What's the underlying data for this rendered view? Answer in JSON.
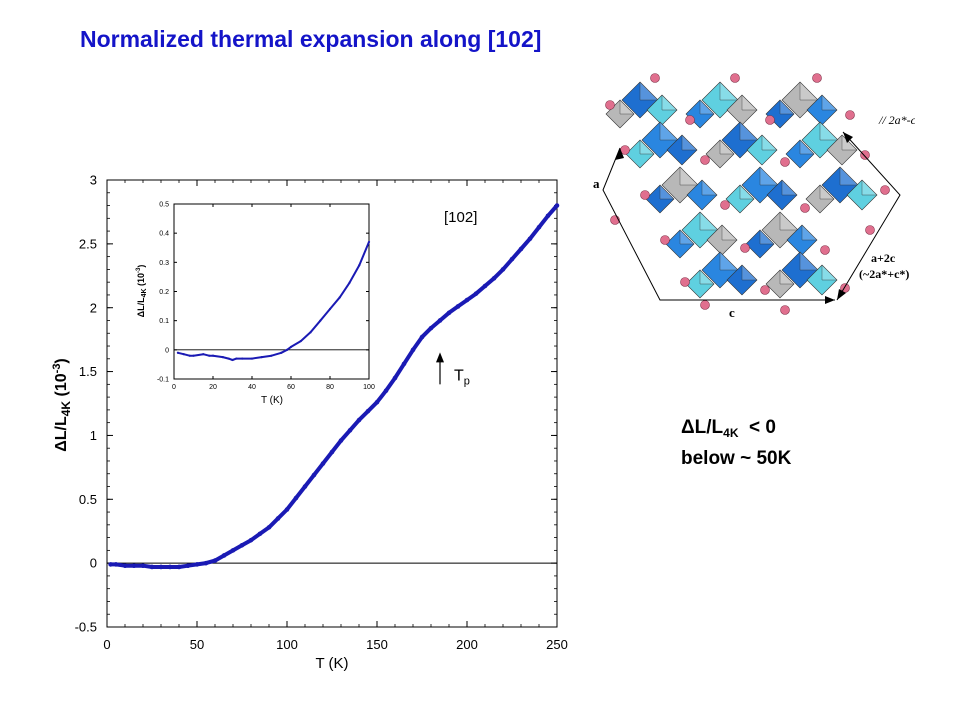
{
  "title": "Normalized thermal expansion along [102]",
  "chart_data": [
    {
      "type": "scatter",
      "xlabel": "T (K)",
      "ylabel_main": "ΔL/L",
      "ylabel_sub": "4K",
      "ylabel_unit_pre": " (10",
      "ylabel_unit_exp": "-3",
      "ylabel_unit_post": ")",
      "xlim": [
        0,
        250
      ],
      "ylim": [
        -0.5,
        3
      ],
      "xticks": [
        0,
        50,
        100,
        150,
        200,
        250
      ],
      "yticks": [
        -0.5,
        0,
        0.5,
        1,
        1.5,
        2,
        2.5,
        3
      ],
      "xtick_labels": [
        "0",
        "50",
        "100",
        "150",
        "200",
        "250"
      ],
      "ytick_labels": [
        "-0.5",
        "0",
        "0.5",
        "1",
        "1.5",
        "2",
        "2.5",
        "3"
      ],
      "zero_line": 0,
      "annotation_direction": "[102]",
      "arrow_label_main": "T",
      "arrow_label_sub": "p",
      "arrow_x": 185,
      "arrow_y_range": [
        1.4,
        1.65
      ],
      "series": [
        {
          "color": "#1a1ab4",
          "x": [
            2,
            5,
            10,
            15,
            20,
            25,
            30,
            35,
            40,
            45,
            50,
            55,
            60,
            65,
            70,
            75,
            80,
            85,
            90,
            95,
            100,
            105,
            110,
            115,
            120,
            125,
            130,
            135,
            140,
            145,
            150,
            155,
            160,
            165,
            170,
            175,
            180,
            185,
            190,
            195,
            200,
            205,
            210,
            215,
            220,
            225,
            230,
            235,
            240,
            245,
            250
          ],
          "y": [
            -0.01,
            -0.01,
            -0.02,
            -0.02,
            -0.02,
            -0.03,
            -0.03,
            -0.03,
            -0.03,
            -0.02,
            -0.01,
            0.0,
            0.02,
            0.06,
            0.1,
            0.14,
            0.18,
            0.23,
            0.28,
            0.35,
            0.42,
            0.51,
            0.6,
            0.69,
            0.78,
            0.87,
            0.96,
            1.04,
            1.12,
            1.19,
            1.26,
            1.35,
            1.45,
            1.56,
            1.67,
            1.77,
            1.84,
            1.9,
            1.96,
            2.01,
            2.06,
            2.11,
            2.17,
            2.23,
            2.3,
            2.38,
            2.46,
            2.54,
            2.63,
            2.72,
            2.8
          ]
        }
      ]
    },
    {
      "type": "scatter",
      "name": "inset",
      "xlabel": "T (K)",
      "ylabel_main": "ΔL/L",
      "ylabel_sub": "4K",
      "ylabel_unit_pre": " (10",
      "ylabel_unit_exp": "-3",
      "ylabel_unit_post": ")",
      "xlim": [
        0,
        100
      ],
      "ylim": [
        -0.1,
        0.5
      ],
      "xticks": [
        0,
        20,
        40,
        60,
        80,
        100
      ],
      "yticks": [
        -0.1,
        0,
        0.1,
        0.2,
        0.3,
        0.4,
        0.5
      ],
      "xtick_labels": [
        "0",
        "20",
        "40",
        "60",
        "80",
        "100"
      ],
      "ytick_labels": [
        "-0.1",
        "0",
        "0.1",
        "0.2",
        "0.3",
        "0.4",
        "0.5"
      ],
      "zero_line": 0,
      "series": [
        {
          "color": "#1a1ab4",
          "x": [
            2,
            5,
            8,
            10,
            15,
            18,
            20,
            25,
            28,
            30,
            32,
            35,
            40,
            45,
            50,
            55,
            58,
            60,
            65,
            70,
            75,
            80,
            85,
            90,
            95,
            100
          ],
          "y": [
            -0.01,
            -0.015,
            -0.02,
            -0.02,
            -0.015,
            -0.02,
            -0.02,
            -0.025,
            -0.03,
            -0.035,
            -0.03,
            -0.03,
            -0.03,
            -0.025,
            -0.02,
            -0.01,
            0.0,
            0.01,
            0.03,
            0.06,
            0.1,
            0.14,
            0.18,
            0.23,
            0.29,
            0.37
          ]
        }
      ]
    }
  ],
  "crystal": {
    "label_a": "a",
    "label_c": "c",
    "label_2a_c": "// 2a*-c*",
    "label_a2c": "a+2c",
    "label_a2c_paren": "(~2a*+c*)"
  },
  "note": {
    "line1_pre": "ΔL/L",
    "line1_sub": "4K",
    "line1_post": "  < 0",
    "line2": "below  ~  50K"
  }
}
